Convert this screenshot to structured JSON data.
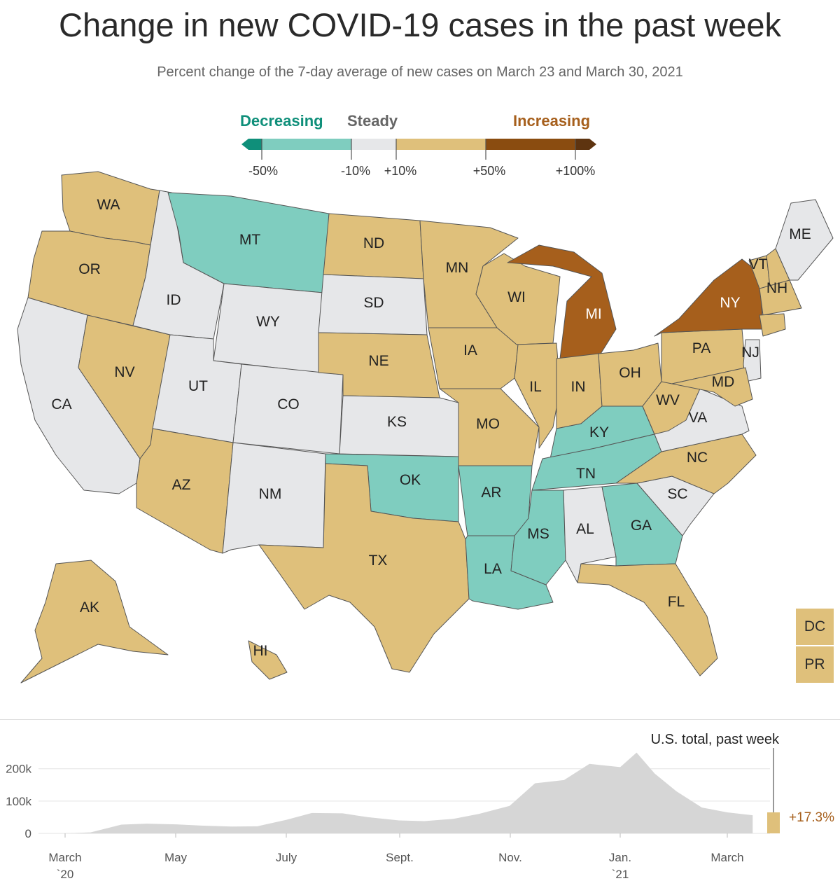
{
  "title": "Change in new COVID-19 cases in the past week",
  "subtitle": "Percent change of the 7-day average of new cases on March 23 and March 30, 2021",
  "legend": {
    "decreasing": "Decreasing",
    "steady": "Steady",
    "increasing": "Increasing",
    "ticks": [
      "-50%",
      "-10%",
      "+10%",
      "+50%",
      "+100%"
    ],
    "colors": {
      "strong_decrease": "#0f8f7a",
      "decrease": "#7fcdbf",
      "steady": "#e6e7e9",
      "increase": "#dfc07b",
      "strong_increase": "#a65f1c",
      "very_strong_increase": "#5e3410",
      "decreasing_label": "#0f8f7a",
      "increasing_label": "#a65f1c"
    }
  },
  "states": [
    {
      "abbr": "WA",
      "category": "increase"
    },
    {
      "abbr": "OR",
      "category": "increase"
    },
    {
      "abbr": "CA",
      "category": "steady"
    },
    {
      "abbr": "NV",
      "category": "increase"
    },
    {
      "abbr": "ID",
      "category": "steady"
    },
    {
      "abbr": "MT",
      "category": "decrease"
    },
    {
      "abbr": "WY",
      "category": "steady"
    },
    {
      "abbr": "UT",
      "category": "steady"
    },
    {
      "abbr": "CO",
      "category": "steady"
    },
    {
      "abbr": "AZ",
      "category": "increase"
    },
    {
      "abbr": "NM",
      "category": "steady"
    },
    {
      "abbr": "ND",
      "category": "increase"
    },
    {
      "abbr": "SD",
      "category": "steady"
    },
    {
      "abbr": "NE",
      "category": "increase"
    },
    {
      "abbr": "KS",
      "category": "steady"
    },
    {
      "abbr": "OK",
      "category": "decrease"
    },
    {
      "abbr": "TX",
      "category": "increase"
    },
    {
      "abbr": "MN",
      "category": "increase"
    },
    {
      "abbr": "IA",
      "category": "increase"
    },
    {
      "abbr": "MO",
      "category": "increase"
    },
    {
      "abbr": "AR",
      "category": "decrease"
    },
    {
      "abbr": "LA",
      "category": "decrease"
    },
    {
      "abbr": "WI",
      "category": "increase"
    },
    {
      "abbr": "IL",
      "category": "increase"
    },
    {
      "abbr": "MI",
      "category": "strong_increase"
    },
    {
      "abbr": "IN",
      "category": "increase"
    },
    {
      "abbr": "OH",
      "category": "increase"
    },
    {
      "abbr": "KY",
      "category": "decrease"
    },
    {
      "abbr": "TN",
      "category": "decrease"
    },
    {
      "abbr": "MS",
      "category": "decrease"
    },
    {
      "abbr": "AL",
      "category": "steady"
    },
    {
      "abbr": "GA",
      "category": "decrease"
    },
    {
      "abbr": "FL",
      "category": "increase"
    },
    {
      "abbr": "SC",
      "category": "steady"
    },
    {
      "abbr": "NC",
      "category": "increase"
    },
    {
      "abbr": "VA",
      "category": "steady"
    },
    {
      "abbr": "WV",
      "category": "increase"
    },
    {
      "abbr": "PA",
      "category": "increase"
    },
    {
      "abbr": "NY",
      "category": "strong_increase"
    },
    {
      "abbr": "VT",
      "category": "increase"
    },
    {
      "abbr": "NH",
      "category": "increase"
    },
    {
      "abbr": "ME",
      "category": "steady"
    },
    {
      "abbr": "NJ",
      "category": "steady"
    },
    {
      "abbr": "MD",
      "category": "increase"
    },
    {
      "abbr": "AK",
      "category": "increase"
    },
    {
      "abbr": "HI",
      "category": "increase"
    },
    {
      "abbr": "DC",
      "category": "increase"
    },
    {
      "abbr": "PR",
      "category": "increase"
    }
  ],
  "chart_data": {
    "type": "area",
    "annotation": "U.S. total, past week",
    "change_label": "+17.3%",
    "y_ticks": [
      "200k",
      "100k",
      "0"
    ],
    "ylim": [
      0,
      260000
    ],
    "x_ticks": [
      {
        "label": "March",
        "sub": "`20"
      },
      {
        "label": "May",
        "sub": ""
      },
      {
        "label": "July",
        "sub": ""
      },
      {
        "label": "Sept.",
        "sub": ""
      },
      {
        "label": "Nov.",
        "sub": ""
      },
      {
        "label": "Jan.",
        "sub": "`21"
      },
      {
        "label": "March",
        "sub": ""
      }
    ],
    "x": [
      "2020-03-01",
      "2020-03-15",
      "2020-04-01",
      "2020-04-15",
      "2020-05-01",
      "2020-05-15",
      "2020-06-01",
      "2020-06-15",
      "2020-07-01",
      "2020-07-15",
      "2020-08-01",
      "2020-08-15",
      "2020-09-01",
      "2020-09-15",
      "2020-10-01",
      "2020-10-15",
      "2020-11-01",
      "2020-11-15",
      "2020-12-01",
      "2020-12-15",
      "2021-01-01",
      "2021-01-10",
      "2021-01-20",
      "2021-02-01",
      "2021-02-15",
      "2021-03-01",
      "2021-03-15",
      "2021-03-30"
    ],
    "values": [
      100,
      3000,
      27000,
      30000,
      28000,
      24000,
      21000,
      22000,
      42000,
      63000,
      62000,
      50000,
      40000,
      38000,
      45000,
      60000,
      85000,
      155000,
      165000,
      215000,
      205000,
      250000,
      185000,
      130000,
      80000,
      65000,
      56000,
      65000
    ],
    "area_color": "#d6d6d6",
    "highlight_color": "#dfc07b"
  },
  "states_fill_note": ""
}
